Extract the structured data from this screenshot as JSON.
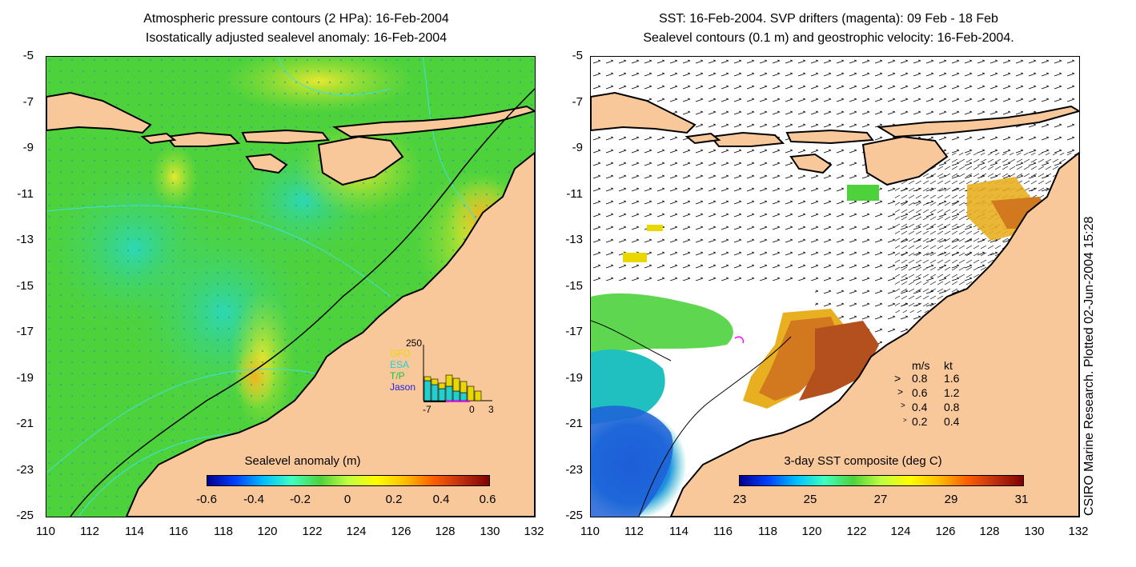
{
  "left_panel": {
    "title_line1": "Atmospheric pressure contours (2 HPa): 16-Feb-2004",
    "title_line2": "Isostatically adjusted sealevel anomaly: 16-Feb-2004",
    "colorbar_label": "Sealevel anomaly (m)",
    "colorbar_ticks": [
      "-0.6",
      "-0.4",
      "-0.2",
      "0",
      "0.2",
      "0.4",
      "0.6"
    ],
    "inset": {
      "ymax_label": "250",
      "xmin_label": "-7",
      "xzero_label": "0",
      "xmax_label": "3",
      "legend": [
        {
          "name": "GFO",
          "color": "#e8d800"
        },
        {
          "name": "ESA",
          "color": "#20d0d0"
        },
        {
          "name": "T/P",
          "color": "#20c040"
        },
        {
          "name": "Jason",
          "color": "#2020e0"
        }
      ]
    }
  },
  "right_panel": {
    "title_line1": "SST: 16-Feb-2004. SVP drifters (magenta): 09 Feb - 18 Feb",
    "title_line2": "Sealevel contours (0.1 m) and geostrophic velocity: 16-Feb-2004.",
    "colorbar_label": "3-day SST composite (deg C)",
    "colorbar_ticks": [
      "23",
      "25",
      "27",
      "29",
      "31"
    ],
    "velocity_legend": {
      "header_ms": "m/s",
      "header_kt": "kt",
      "rows": [
        {
          "ms": "0.8",
          "kt": "1.6"
        },
        {
          "ms": "0.6",
          "kt": "1.2"
        },
        {
          "ms": "0.4",
          "kt": "0.8"
        },
        {
          "ms": "0.2",
          "kt": "0.4"
        }
      ]
    }
  },
  "axes": {
    "y_ticks": [
      "-5",
      "-7",
      "-9",
      "-11",
      "-13",
      "-15",
      "-17",
      "-19",
      "-21",
      "-23",
      "-25"
    ],
    "x_ticks": [
      "110",
      "112",
      "114",
      "116",
      "118",
      "120",
      "122",
      "124",
      "126",
      "128",
      "130",
      "132"
    ]
  },
  "credit": "CSIRO Marine Research. Plotted 02-Jun-2004 15:28",
  "colors": {
    "land": "#f9c89a",
    "sea_green": "#4ed23c",
    "sea_cyan": "#2cd7b4",
    "sea_yellow": "#e0e830",
    "sst_orange": "#d2781e",
    "sst_brown": "#b4501e",
    "sst_blue": "#1e50d2",
    "contour_cyan": "#40e0e0"
  }
}
